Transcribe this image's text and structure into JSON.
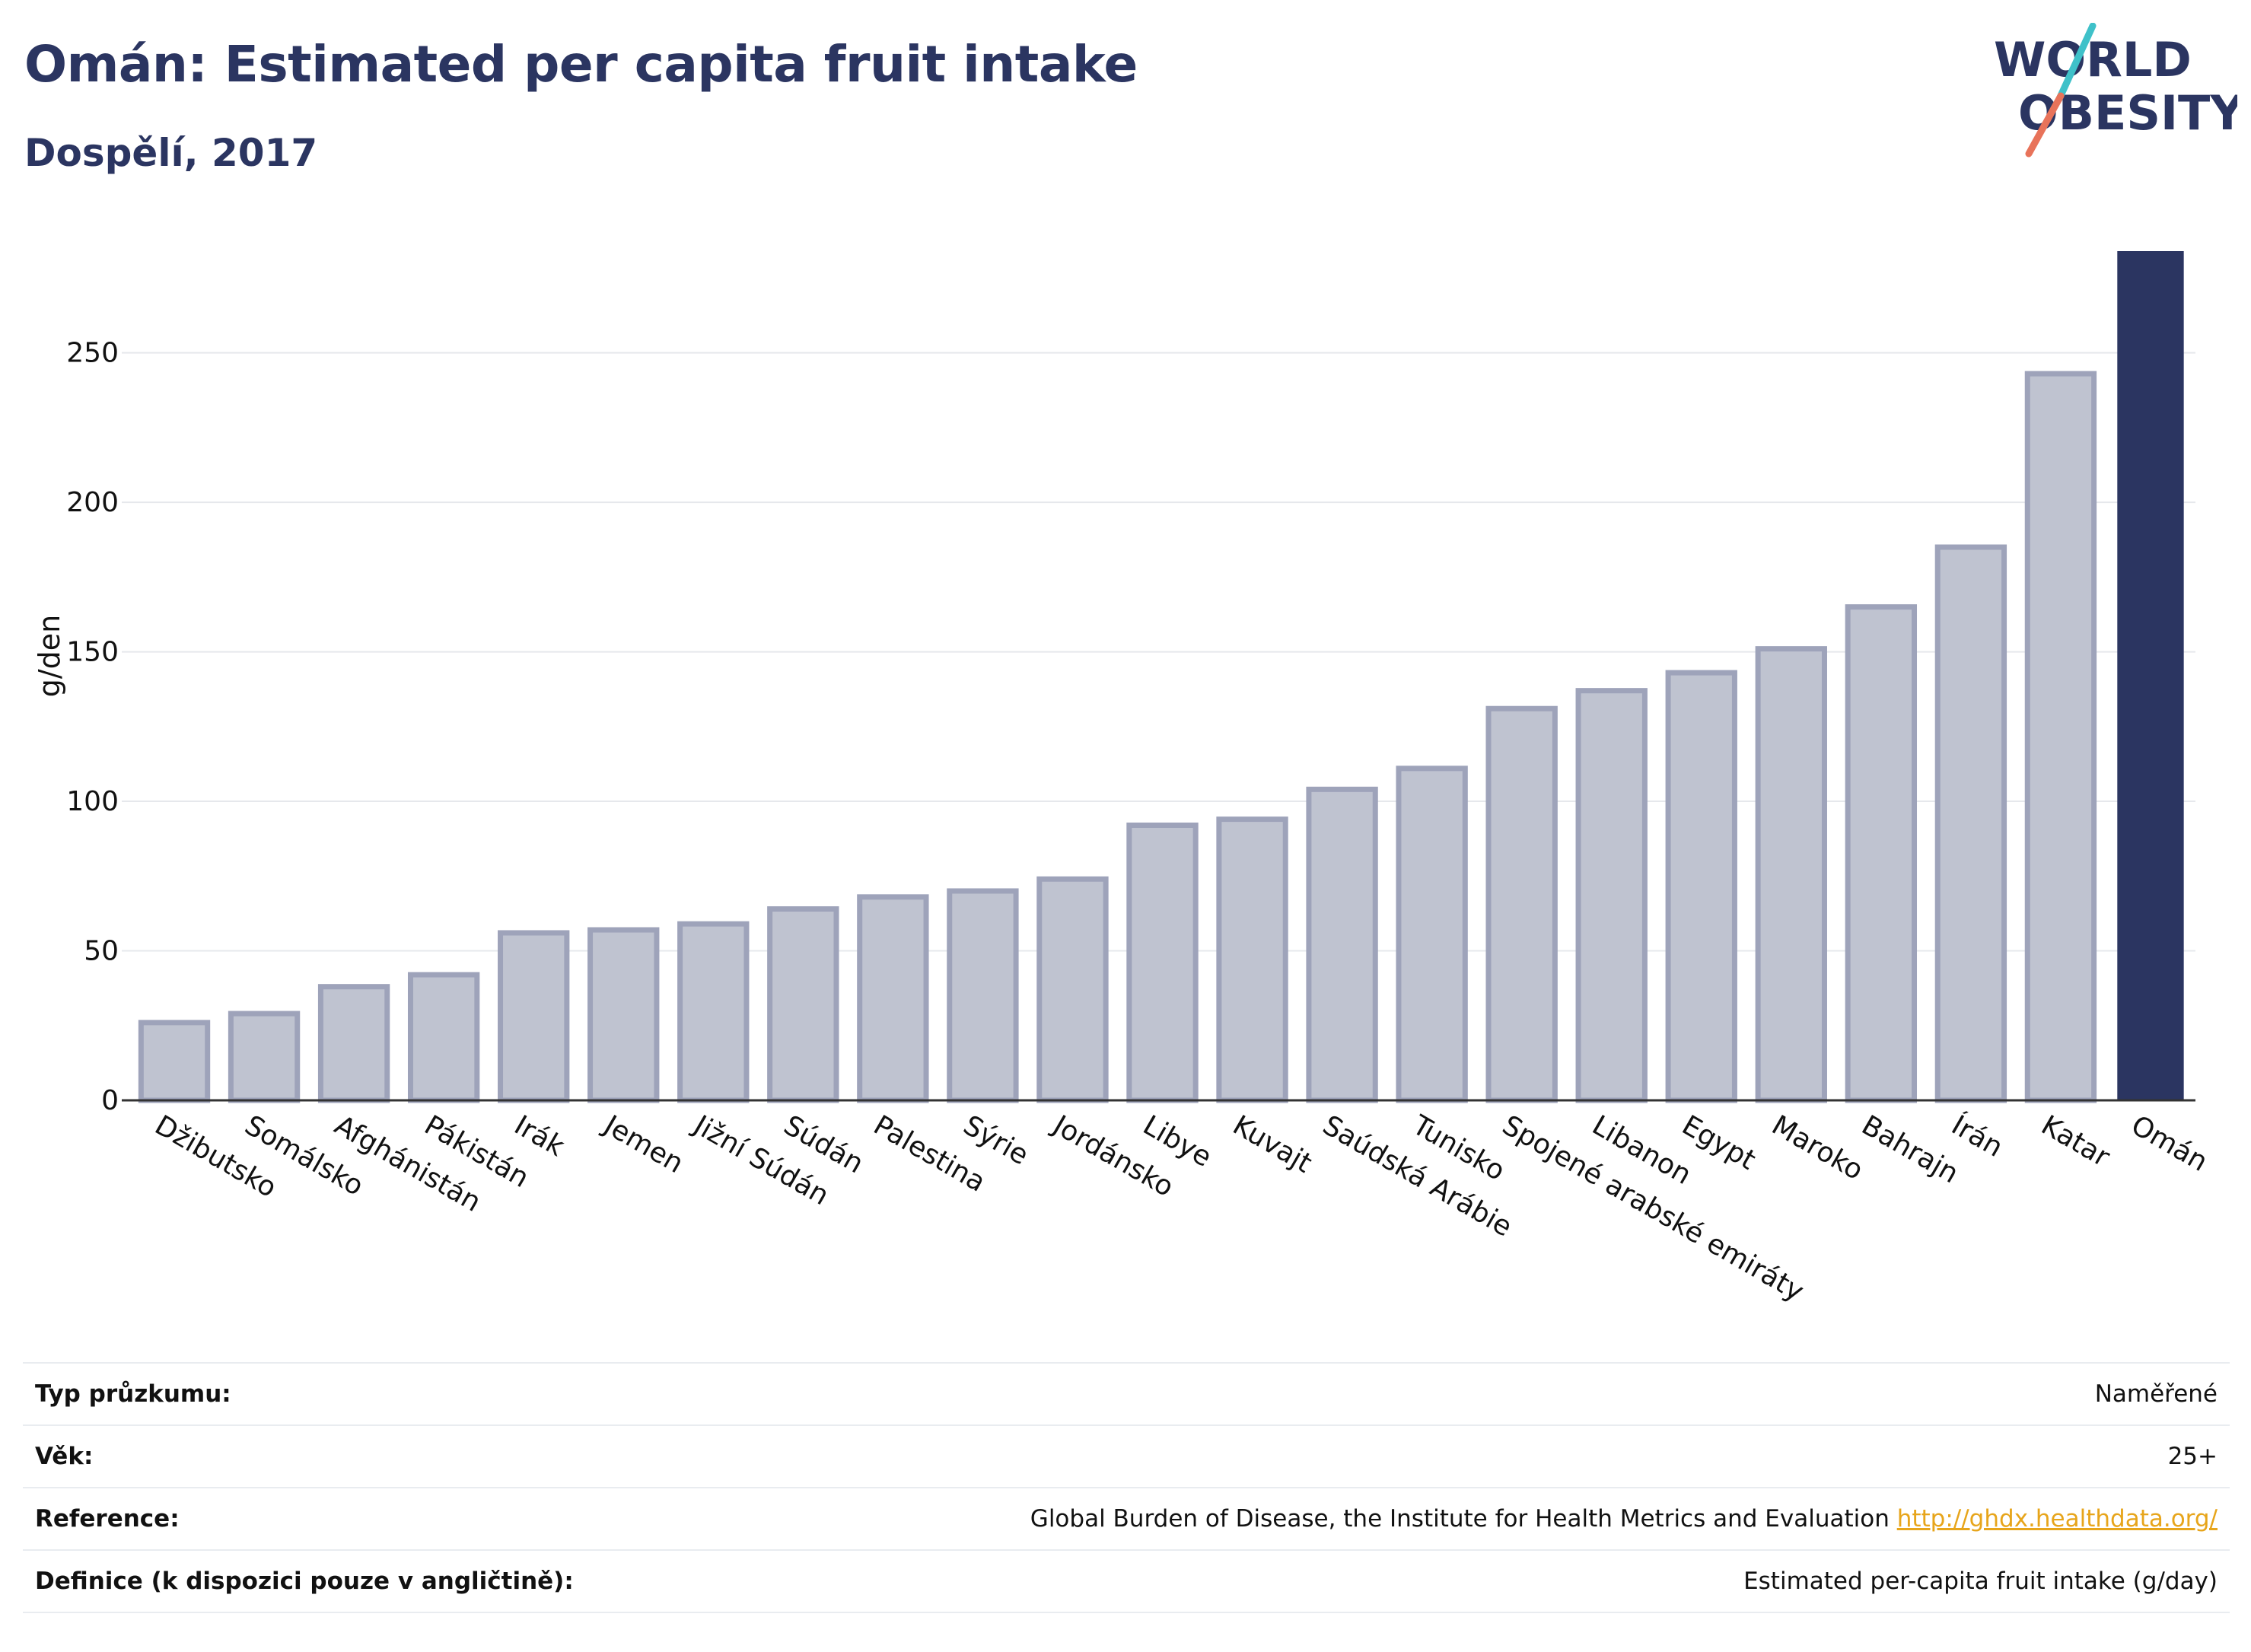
{
  "header": {
    "title": "Omán: Estimated per capita fruit intake",
    "subtitle": "Dospělí, 2017"
  },
  "logo": {
    "line1": "WORLD",
    "line2": "OBESITY",
    "colors": {
      "text": "#2b3561",
      "slash_teal": "#3fc1c9",
      "slash_coral": "#e8735a"
    }
  },
  "colors": {
    "highlight_bar": "#2b3561",
    "bar_fill": "#bfc3d0",
    "bar_outline": "#9ea3ba",
    "grid": "#e6e8ec",
    "link": "#e7a51b"
  },
  "chart_data": {
    "type": "bar",
    "title": "",
    "xlabel": "",
    "ylabel": "g/den",
    "ylim": [
      0,
      284
    ],
    "yticks": [
      0,
      50,
      100,
      150,
      200,
      250
    ],
    "grid": true,
    "highlight": "Omán",
    "categories": [
      "Džibutsko",
      "Somálsko",
      "Afghánistán",
      "Pákistán",
      "Irák",
      "Jemen",
      "Jižní Súdán",
      "Súdán",
      "Palestina",
      "Sýrie",
      "Jordánsko",
      "Libye",
      "Kuvajt",
      "Saúdská Arábie",
      "Tunisko",
      "Spojené arabské emiráty",
      "Libanon",
      "Egypt",
      "Maroko",
      "Bahrajn",
      "Írán",
      "Katar",
      "Omán"
    ],
    "values": [
      26,
      29,
      38,
      42,
      56,
      57,
      59,
      64,
      68,
      70,
      74,
      92,
      94,
      104,
      111,
      131,
      137,
      143,
      151,
      165,
      185,
      243,
      284
    ]
  },
  "info": {
    "rows": [
      {
        "key": "Typ průzkumu:",
        "value": "Naměřené"
      },
      {
        "key": "Věk:",
        "value": "25+"
      },
      {
        "key": "Reference:",
        "value": "Global Burden of Disease, the Institute for Health Metrics and Evaluation",
        "link": "http://ghdx.healthdata.org/"
      },
      {
        "key": "Definice (k dispozici pouze v angličtině):",
        "value": "Estimated per-capita fruit intake (g/day)"
      }
    ]
  }
}
